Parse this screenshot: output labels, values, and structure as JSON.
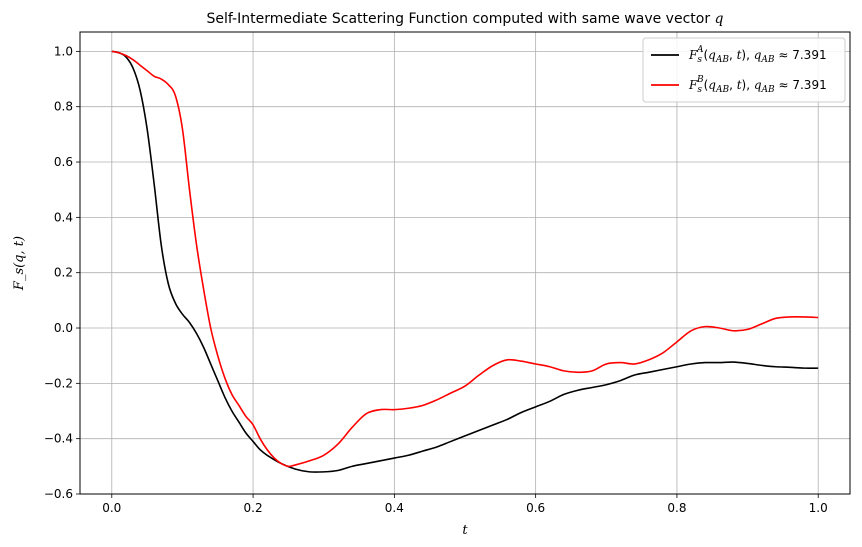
{
  "chart_data": {
    "type": "line",
    "title": "Self-Intermediate Scattering Function computed with same wave vector q",
    "xlabel": "t",
    "ylabel": "F_s(q, t)",
    "xlim": [
      -0.045,
      1.045
    ],
    "ylim": [
      -0.6,
      1.07
    ],
    "xticks": [
      0.0,
      0.2,
      0.4,
      0.6,
      0.8,
      1.0
    ],
    "xtick_labels": [
      "0.0",
      "0.2",
      "0.4",
      "0.6",
      "0.8",
      "1.0"
    ],
    "yticks": [
      -0.6,
      -0.4,
      -0.2,
      0.0,
      0.2,
      0.4,
      0.6,
      0.8,
      1.0
    ],
    "ytick_labels": [
      "−0.6",
      "−0.4",
      "−0.2",
      "0.0",
      "0.2",
      "0.4",
      "0.6",
      "0.8",
      "1.0"
    ],
    "grid": true,
    "legend_position": "top-right",
    "series": [
      {
        "name": "F_s^A(q_AB, t), q_AB ≈ 7.391",
        "color": "#000000",
        "x": [
          0.0,
          0.01,
          0.02,
          0.03,
          0.04,
          0.05,
          0.06,
          0.07,
          0.08,
          0.09,
          0.1,
          0.11,
          0.12,
          0.13,
          0.14,
          0.15,
          0.16,
          0.17,
          0.18,
          0.19,
          0.2,
          0.21,
          0.22,
          0.24,
          0.26,
          0.28,
          0.3,
          0.32,
          0.34,
          0.36,
          0.38,
          0.4,
          0.42,
          0.44,
          0.46,
          0.48,
          0.5,
          0.52,
          0.54,
          0.56,
          0.58,
          0.6,
          0.62,
          0.64,
          0.66,
          0.68,
          0.7,
          0.72,
          0.74,
          0.76,
          0.78,
          0.8,
          0.82,
          0.84,
          0.86,
          0.88,
          0.9,
          0.92,
          0.94,
          0.96,
          0.98,
          1.0
        ],
        "y": [
          1.0,
          0.995,
          0.98,
          0.94,
          0.86,
          0.72,
          0.52,
          0.3,
          0.16,
          0.09,
          0.05,
          0.02,
          -0.02,
          -0.07,
          -0.13,
          -0.19,
          -0.25,
          -0.3,
          -0.34,
          -0.38,
          -0.41,
          -0.44,
          -0.46,
          -0.49,
          -0.51,
          -0.52,
          -0.52,
          -0.515,
          -0.5,
          -0.49,
          -0.48,
          -0.47,
          -0.46,
          -0.445,
          -0.43,
          -0.41,
          -0.39,
          -0.37,
          -0.35,
          -0.33,
          -0.305,
          -0.285,
          -0.265,
          -0.24,
          -0.225,
          -0.215,
          -0.205,
          -0.19,
          -0.17,
          -0.16,
          -0.15,
          -0.14,
          -0.13,
          -0.125,
          -0.125,
          -0.123,
          -0.128,
          -0.135,
          -0.14,
          -0.142,
          -0.145,
          -0.145
        ]
      },
      {
        "name": "F_s^B(q_AB, t), q_AB ≈ 7.391",
        "color": "#ff0000",
        "x": [
          0.0,
          0.01,
          0.02,
          0.03,
          0.04,
          0.05,
          0.06,
          0.07,
          0.08,
          0.09,
          0.1,
          0.11,
          0.12,
          0.13,
          0.14,
          0.15,
          0.16,
          0.17,
          0.18,
          0.19,
          0.2,
          0.21,
          0.22,
          0.23,
          0.24,
          0.25,
          0.26,
          0.28,
          0.3,
          0.32,
          0.34,
          0.36,
          0.38,
          0.4,
          0.42,
          0.44,
          0.46,
          0.48,
          0.5,
          0.52,
          0.54,
          0.56,
          0.58,
          0.6,
          0.62,
          0.64,
          0.66,
          0.68,
          0.7,
          0.72,
          0.74,
          0.76,
          0.78,
          0.8,
          0.82,
          0.84,
          0.86,
          0.88,
          0.9,
          0.92,
          0.94,
          0.96,
          0.98,
          1.0
        ],
        "y": [
          1.0,
          0.995,
          0.985,
          0.97,
          0.95,
          0.93,
          0.91,
          0.9,
          0.88,
          0.84,
          0.72,
          0.5,
          0.3,
          0.14,
          0.0,
          -0.1,
          -0.18,
          -0.24,
          -0.28,
          -0.32,
          -0.35,
          -0.4,
          -0.44,
          -0.47,
          -0.49,
          -0.5,
          -0.495,
          -0.48,
          -0.46,
          -0.42,
          -0.36,
          -0.31,
          -0.295,
          -0.295,
          -0.29,
          -0.28,
          -0.26,
          -0.235,
          -0.21,
          -0.17,
          -0.135,
          -0.115,
          -0.12,
          -0.13,
          -0.14,
          -0.155,
          -0.16,
          -0.155,
          -0.13,
          -0.125,
          -0.13,
          -0.115,
          -0.09,
          -0.05,
          -0.01,
          0.005,
          0.0,
          -0.01,
          -0.005,
          0.015,
          0.035,
          0.04,
          0.04,
          0.038
        ]
      }
    ]
  }
}
